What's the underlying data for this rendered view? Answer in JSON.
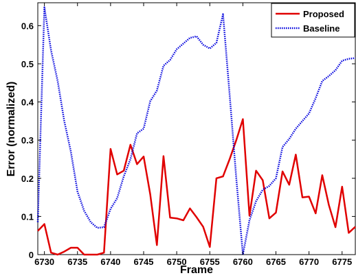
{
  "chart_data": {
    "type": "line",
    "title": "",
    "xlabel": "Frame",
    "ylabel": "Error (normalized)",
    "xlim": [
      6729,
      6777
    ],
    "ylim": [
      0,
      0.66
    ],
    "xticks": [
      6730,
      6735,
      6740,
      6745,
      6750,
      6755,
      6760,
      6765,
      6770,
      6775
    ],
    "yticks": [
      0,
      0.1,
      0.2,
      0.3,
      0.4,
      0.5,
      0.6
    ],
    "ytick_labels": [
      "0",
      "0.1",
      "0.2",
      "0.3",
      "0.4",
      "0.5",
      "0.6"
    ],
    "grid": false,
    "legend_position": "top-right",
    "series": [
      {
        "name": "Proposed",
        "color": "#e00000",
        "style": "solid",
        "x": [
          6729,
          6730,
          6731,
          6732,
          6733,
          6734,
          6735,
          6736,
          6737,
          6738,
          6739,
          6740,
          6741,
          6742,
          6743,
          6744,
          6745,
          6746,
          6747,
          6748,
          6749,
          6750,
          6751,
          6752,
          6753,
          6754,
          6755,
          6756,
          6757,
          6758,
          6759,
          6760,
          6761,
          6762,
          6763,
          6764,
          6765,
          6766,
          6767,
          6768,
          6769,
          6770,
          6771,
          6772,
          6773,
          6774,
          6775,
          6776,
          6777
        ],
        "y": [
          0.062,
          0.08,
          0.005,
          0.0,
          0.008,
          0.018,
          0.018,
          0.0,
          0.0,
          0.0,
          0.005,
          0.277,
          0.21,
          0.22,
          0.288,
          0.237,
          0.257,
          0.158,
          0.025,
          0.258,
          0.097,
          0.095,
          0.09,
          0.121,
          0.098,
          0.073,
          0.02,
          0.2,
          0.205,
          0.25,
          0.3,
          0.355,
          0.102,
          0.22,
          0.195,
          0.095,
          0.11,
          0.218,
          0.183,
          0.262,
          0.15,
          0.152,
          0.108,
          0.208,
          0.13,
          0.072,
          0.178,
          0.057,
          0.073
        ]
      },
      {
        "name": "Baseline",
        "color": "#0000dd",
        "style": "dotted",
        "x": [
          6729,
          6730,
          6731,
          6732,
          6733,
          6734,
          6735,
          6736,
          6737,
          6738,
          6739,
          6740,
          6741,
          6742,
          6743,
          6744,
          6745,
          6746,
          6747,
          6748,
          6749,
          6750,
          6751,
          6752,
          6753,
          6754,
          6755,
          6756,
          6757,
          6758,
          6759,
          6760,
          6761,
          6762,
          6763,
          6764,
          6765,
          6766,
          6767,
          6768,
          6769,
          6770,
          6771,
          6772,
          6773,
          6774,
          6775,
          6776,
          6777
        ],
        "y": [
          0.085,
          0.648,
          0.535,
          0.455,
          0.35,
          0.27,
          0.165,
          0.115,
          0.085,
          0.07,
          0.072,
          0.12,
          0.148,
          0.205,
          0.25,
          0.318,
          0.33,
          0.402,
          0.43,
          0.495,
          0.51,
          0.538,
          0.553,
          0.568,
          0.572,
          0.55,
          0.54,
          0.555,
          0.63,
          0.42,
          0.2,
          0.0,
          0.09,
          0.14,
          0.17,
          0.18,
          0.2,
          0.282,
          0.303,
          0.33,
          0.35,
          0.37,
          0.41,
          0.455,
          0.468,
          0.483,
          0.508,
          0.513,
          0.515
        ]
      }
    ]
  }
}
